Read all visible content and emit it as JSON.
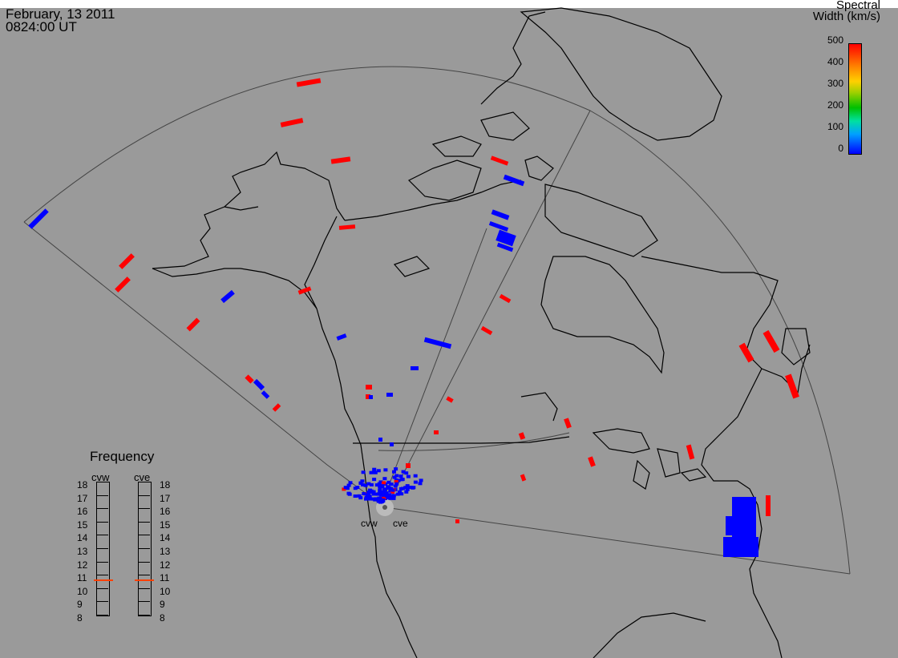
{
  "timestamp": {
    "date": "February, 13 2011",
    "time": "0824:00 UT"
  },
  "colorbar": {
    "title_line1": "Spectral",
    "title_line2": "Width (km/s)",
    "ticks": [
      "500",
      "400",
      "300",
      "200",
      "100",
      "0"
    ],
    "colors": [
      "#0000ff",
      "#00a0ff",
      "#00c000",
      "#ffd000",
      "#ff0000"
    ]
  },
  "frequency_panel": {
    "title": "Frequency",
    "radars": [
      "cvw",
      "cve"
    ],
    "levels": [
      "18",
      "17",
      "16",
      "15",
      "14",
      "13",
      "12",
      "11",
      "10",
      "9",
      "8"
    ],
    "cvw_frequency": "10.8",
    "cve_frequency": "10.8",
    "marker_color": "#ff4000"
  },
  "radar_labels": {
    "cvw": "cvw",
    "cve": "cve"
  },
  "colors": {
    "background": "#9a9a9a",
    "land": "#000000",
    "fov": "#444444",
    "high_width": "#ff0000",
    "low_width": "#0000ff"
  }
}
